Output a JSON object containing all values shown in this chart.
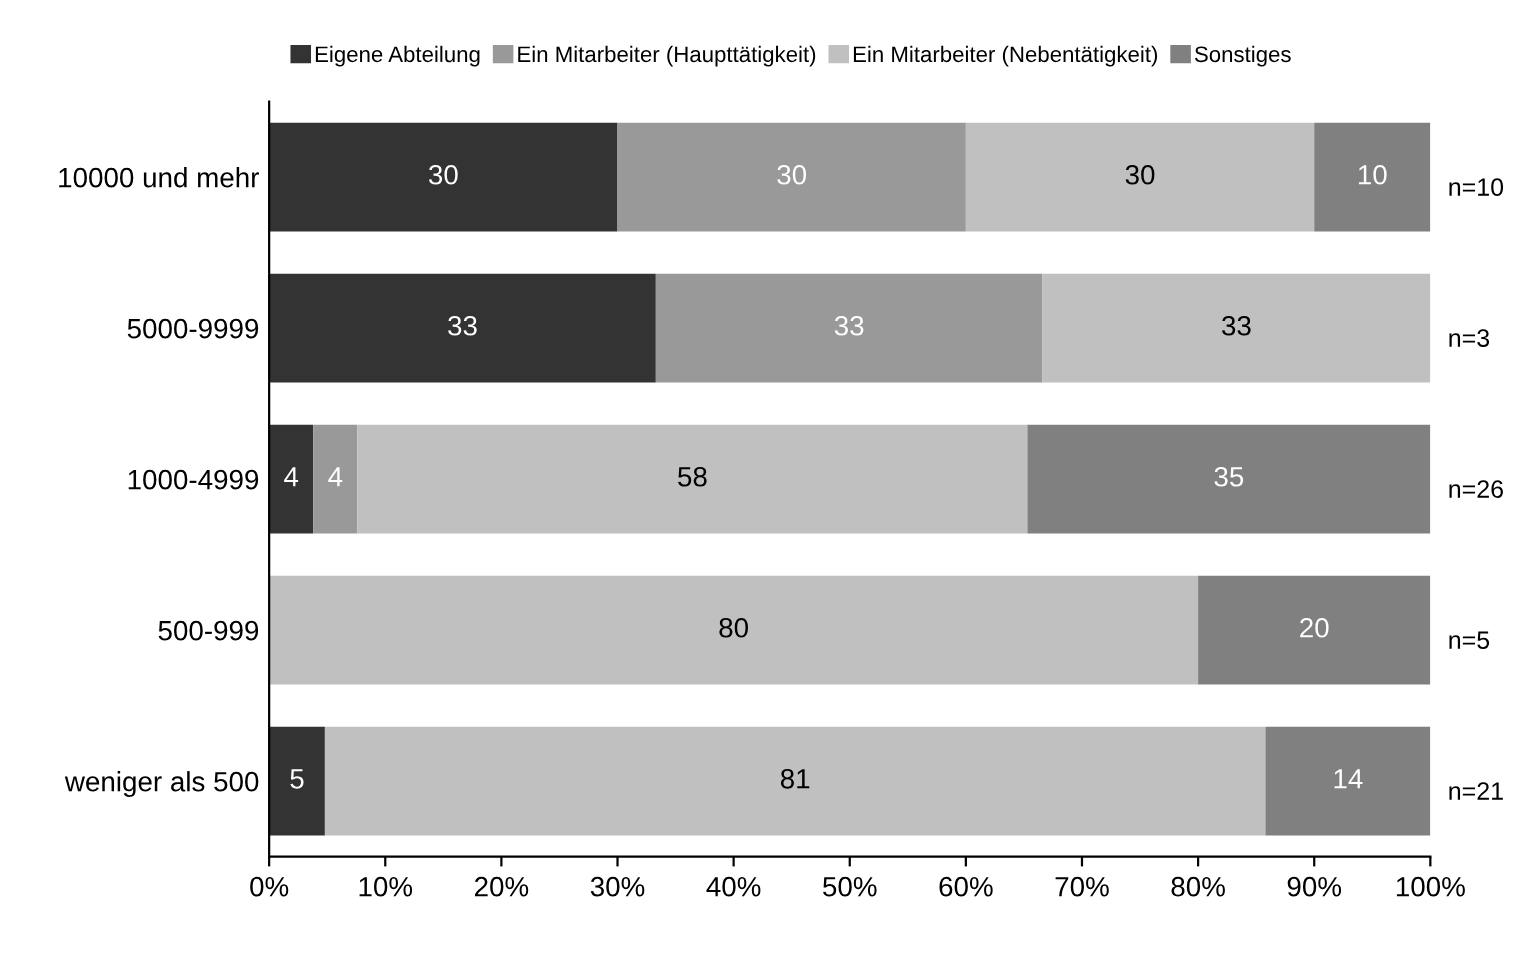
{
  "chart_data": {
    "type": "bar",
    "orientation": "horizontal",
    "stacked": true,
    "categories": [
      "10000 und mehr",
      "5000-9999",
      "1000-4999",
      "500-999",
      "weniger als 500"
    ],
    "series": [
      {
        "name": "Eigene Abteilung",
        "color": "#333333",
        "values": [
          30,
          33.3,
          3.8,
          0,
          4.8
        ],
        "value_labels": [
          "30",
          "33",
          "4",
          null,
          "5"
        ]
      },
      {
        "name": "Ein Mitarbeiter (Haupttätigkeit)",
        "color": "#999999",
        "values": [
          30,
          33.3,
          3.8,
          0,
          0
        ],
        "value_labels": [
          "30",
          "33",
          "4",
          null,
          null
        ]
      },
      {
        "name": "Ein Mitarbeiter (Nebentätigkeit)",
        "color": "#c0c0c0",
        "values": [
          30,
          33.4,
          57.7,
          80,
          81
        ],
        "value_labels": [
          "30",
          "33",
          "58",
          "80",
          "81"
        ]
      },
      {
        "name": "Sonstiges",
        "color": "#808080",
        "values": [
          10,
          0,
          34.7,
          20,
          14.2
        ],
        "value_labels": [
          "10",
          null,
          "35",
          "20",
          "14"
        ]
      }
    ],
    "xlim": [
      0,
      100
    ],
    "xticks": [
      {
        "value": 0,
        "label": "0%"
      },
      {
        "value": 10,
        "label": "10%"
      },
      {
        "value": 20,
        "label": "20%"
      },
      {
        "value": 30,
        "label": "30%"
      },
      {
        "value": 40,
        "label": "40%"
      },
      {
        "value": 50,
        "label": "50%"
      },
      {
        "value": 60,
        "label": "60%"
      },
      {
        "value": 70,
        "label": "70%"
      },
      {
        "value": 80,
        "label": "80%"
      },
      {
        "value": 90,
        "label": "90%"
      },
      {
        "value": 100,
        "label": "100%"
      }
    ],
    "annotations": [
      "n=10",
      "n=3",
      "n=26",
      "n=5",
      "n=21"
    ],
    "legend": "top",
    "grid": false
  }
}
